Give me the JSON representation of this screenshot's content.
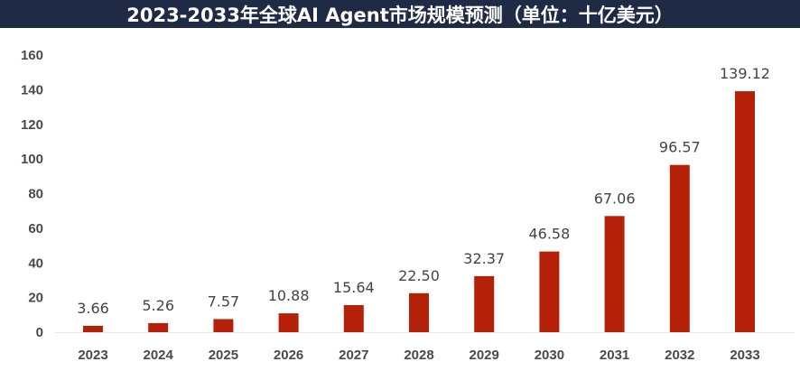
{
  "title": "2023-2033年全球AI Agent市场规模预测（单位：十亿美元）",
  "colors": {
    "title_bg": "#1f2a44",
    "title_fg": "#ffffff",
    "bar": "#b52108",
    "axis_text": "#4a4a4a"
  },
  "chart_data": {
    "type": "bar",
    "title": "2023-2033年全球AI Agent市场规模预测（单位：十亿美元）",
    "xlabel": "",
    "ylabel": "",
    "categories": [
      "2023",
      "2024",
      "2025",
      "2026",
      "2027",
      "2028",
      "2029",
      "2030",
      "2031",
      "2032",
      "2033"
    ],
    "values": [
      3.66,
      5.26,
      7.57,
      10.88,
      15.64,
      22.5,
      32.37,
      46.58,
      67.06,
      96.57,
      139.12
    ],
    "value_labels": [
      "3.66",
      "5.26",
      "7.57",
      "10.88",
      "15.64",
      "22.50",
      "32.37",
      "46.58",
      "67.06",
      "96.57",
      "139.12"
    ],
    "ylim": [
      0,
      160
    ],
    "yticks": [
      "0",
      "20",
      "40",
      "60",
      "80",
      "100",
      "120",
      "140",
      "160"
    ],
    "grid": false,
    "legend": "none"
  }
}
